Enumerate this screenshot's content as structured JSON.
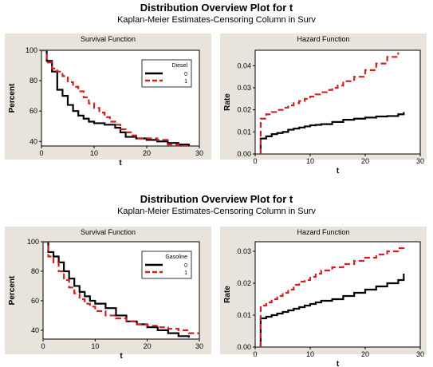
{
  "chart_data": [
    {
      "type": "line",
      "title": "Distribution Overview Plot for t",
      "subtitle": "Kaplan-Meier Estimates-Censoring Column in Surv",
      "subplots": [
        {
          "title": "Survival Function",
          "xlabel": "t",
          "ylabel": "Percent",
          "xlim": [
            0,
            30
          ],
          "ylim": [
            37,
            100
          ],
          "xticks": [
            0,
            10,
            20,
            30
          ],
          "yticks": [
            40,
            60,
            80,
            100
          ],
          "legend": {
            "title": "Diesel",
            "position": "top-right"
          },
          "series": [
            {
              "name": "0",
              "color": "#000000",
              "dash": false,
              "x": [
                0,
                1,
                2,
                3,
                4,
                5,
                6,
                7,
                8,
                9,
                10,
                12,
                14,
                15,
                16,
                18,
                20,
                22,
                24,
                26,
                28,
                30
              ],
              "y": [
                100,
                93,
                86,
                74,
                70,
                64,
                60,
                57,
                55,
                53,
                52,
                51,
                49,
                46,
                43,
                42,
                41,
                40,
                39,
                38,
                36,
                35
              ]
            },
            {
              "name": "1",
              "color": "#cc2222",
              "dash": true,
              "x": [
                0,
                1,
                2,
                3,
                4,
                5,
                6,
                7,
                8,
                9,
                10,
                11,
                12,
                13,
                14,
                15,
                16,
                17,
                18,
                20,
                22,
                24,
                26,
                28
              ],
              "y": [
                100,
                92,
                88,
                86,
                83,
                79,
                76,
                73,
                69,
                65,
                62,
                59,
                56,
                53,
                51,
                48,
                46,
                44,
                42,
                42,
                41,
                38,
                37,
                36
              ]
            }
          ]
        },
        {
          "title": "Hazard Function",
          "xlabel": "t",
          "ylabel": "Rate",
          "xlim": [
            0,
            30
          ],
          "ylim": [
            0,
            0.047
          ],
          "xticks": [
            0,
            10,
            20,
            30
          ],
          "yticks": [
            0.0,
            0.01,
            0.02,
            0.03,
            0.04
          ],
          "series": [
            {
              "name": "0",
              "color": "#000000",
              "dash": false,
              "x": [
                1,
                1,
                2,
                3,
                4,
                5,
                6,
                7,
                8,
                9,
                10,
                11,
                12,
                14,
                16,
                18,
                20,
                22,
                24,
                26,
                27
              ],
              "y": [
                0,
                0.007,
                0.008,
                0.009,
                0.0095,
                0.01,
                0.011,
                0.0115,
                0.012,
                0.0125,
                0.013,
                0.0132,
                0.0135,
                0.0145,
                0.0155,
                0.016,
                0.0165,
                0.017,
                0.0172,
                0.018,
                0.019
              ]
            },
            {
              "name": "1",
              "color": "#cc2222",
              "dash": true,
              "x": [
                1,
                1,
                2,
                3,
                4,
                5,
                6,
                7,
                8,
                9,
                10,
                11,
                12,
                13,
                14,
                15,
                16,
                18,
                20,
                22,
                24,
                26
              ],
              "y": [
                0,
                0.016,
                0.018,
                0.019,
                0.02,
                0.021,
                0.022,
                0.023,
                0.024,
                0.025,
                0.026,
                0.027,
                0.028,
                0.029,
                0.03,
                0.031,
                0.033,
                0.035,
                0.038,
                0.041,
                0.044,
                0.046
              ]
            }
          ]
        }
      ]
    },
    {
      "type": "line",
      "title": "Distribution Overview Plot for t",
      "subtitle": "Kaplan-Meier Estimates-Censoring Column in Surv",
      "subplots": [
        {
          "title": "Survival Function",
          "xlabel": "t",
          "ylabel": "Percent",
          "xlim": [
            0,
            30
          ],
          "ylim": [
            34,
            100
          ],
          "xticks": [
            0,
            10,
            20,
            30
          ],
          "yticks": [
            40,
            60,
            80,
            100
          ],
          "legend": {
            "title": "Gasoline",
            "position": "top-right"
          },
          "series": [
            {
              "name": "0",
              "color": "#000000",
              "dash": false,
              "x": [
                0,
                1,
                2,
                3,
                4,
                5,
                6,
                7,
                8,
                9,
                10,
                12,
                14,
                16,
                18,
                20,
                22,
                24,
                26,
                28
              ],
              "y": [
                100,
                93,
                90,
                86,
                80,
                75,
                70,
                66,
                63,
                60,
                58,
                55,
                50,
                46,
                44,
                42,
                40,
                38,
                36,
                35
              ]
            },
            {
              "name": "1",
              "color": "#cc2222",
              "dash": true,
              "x": [
                0,
                1,
                2,
                3,
                4,
                5,
                6,
                7,
                8,
                9,
                10,
                12,
                14,
                16,
                18,
                20,
                22,
                24,
                26,
                28,
                30
              ],
              "y": [
                100,
                90,
                86,
                80,
                74,
                69,
                65,
                61,
                58,
                56,
                53,
                50,
                48,
                46,
                44,
                43,
                42,
                41,
                40,
                38,
                37
              ]
            }
          ]
        },
        {
          "title": "Hazard Function",
          "xlabel": "t",
          "ylabel": "Rate",
          "xlim": [
            0,
            30
          ],
          "ylim": [
            0,
            0.033
          ],
          "xticks": [
            0,
            10,
            20,
            30
          ],
          "yticks": [
            0.0,
            0.01,
            0.02,
            0.03
          ],
          "series": [
            {
              "name": "0",
              "color": "#000000",
              "dash": false,
              "x": [
                1,
                1,
                2,
                3,
                4,
                5,
                6,
                7,
                8,
                9,
                10,
                11,
                12,
                14,
                16,
                18,
                20,
                22,
                24,
                26,
                27
              ],
              "y": [
                0,
                0.009,
                0.0095,
                0.01,
                0.0105,
                0.011,
                0.0115,
                0.012,
                0.0125,
                0.013,
                0.0135,
                0.014,
                0.0145,
                0.015,
                0.016,
                0.017,
                0.018,
                0.019,
                0.02,
                0.021,
                0.023
              ]
            },
            {
              "name": "1",
              "color": "#cc2222",
              "dash": true,
              "x": [
                1,
                1,
                2,
                3,
                4,
                5,
                6,
                7,
                8,
                9,
                10,
                11,
                12,
                14,
                16,
                18,
                20,
                22,
                24,
                26,
                27
              ],
              "y": [
                0,
                0.013,
                0.014,
                0.015,
                0.016,
                0.017,
                0.018,
                0.0195,
                0.0205,
                0.021,
                0.022,
                0.023,
                0.024,
                0.025,
                0.026,
                0.027,
                0.028,
                0.029,
                0.03,
                0.031,
                0.032
              ]
            }
          ]
        }
      ]
    }
  ]
}
